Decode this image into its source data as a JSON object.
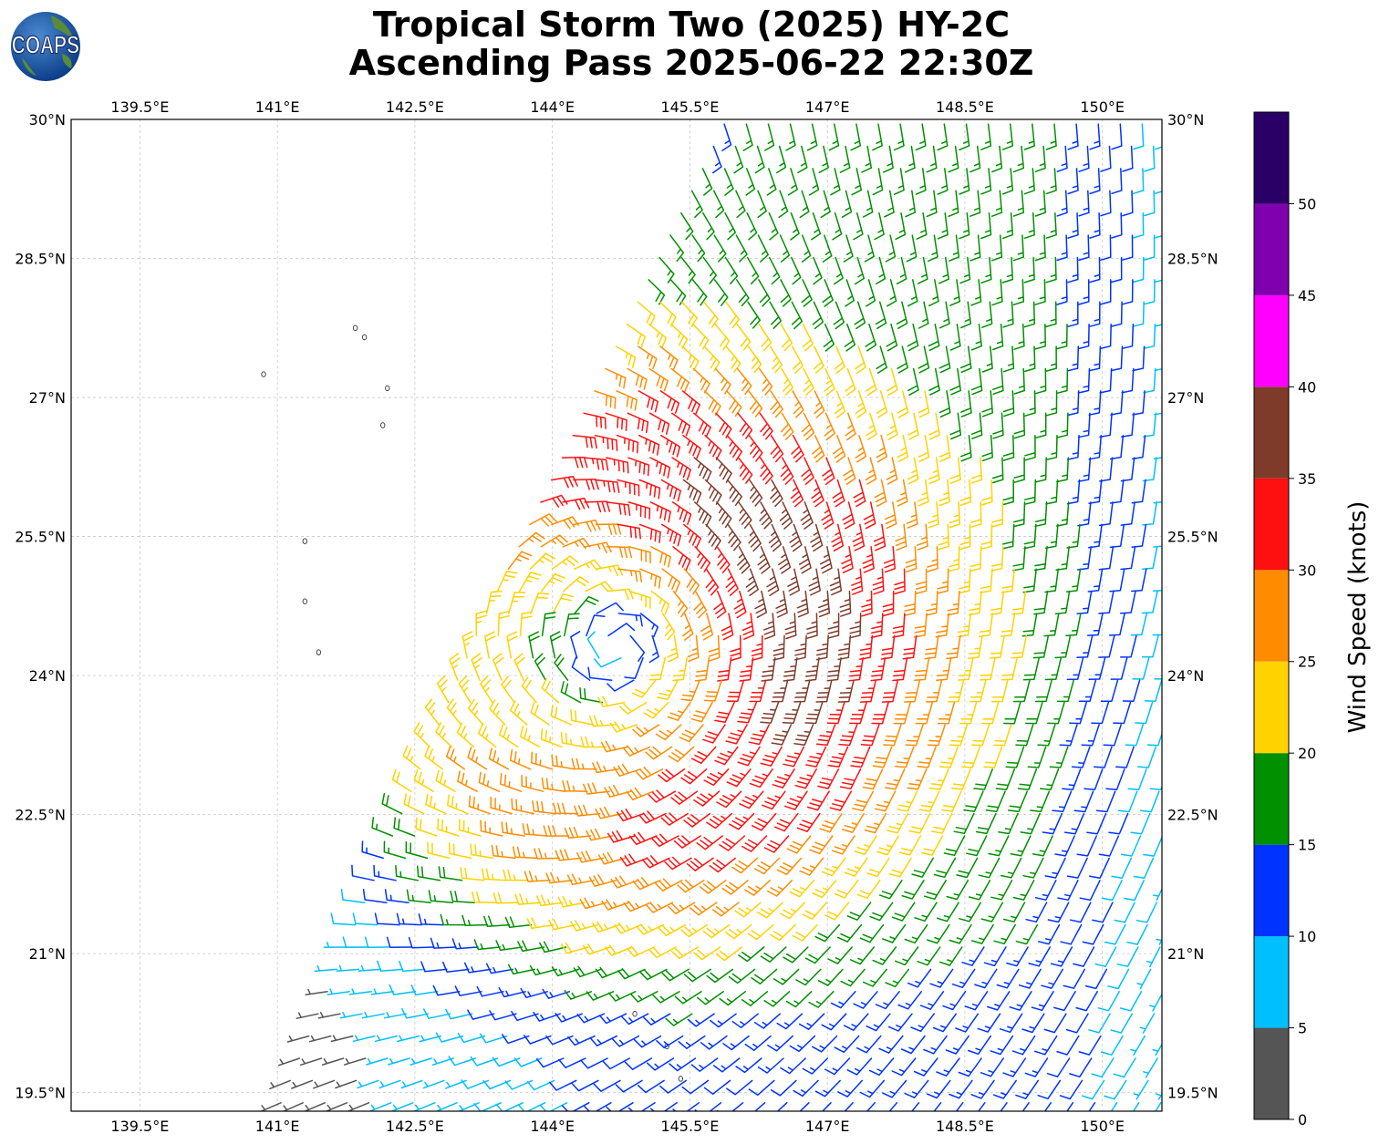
{
  "title": {
    "line1": "Tropical Storm Two (2025) HY-2C",
    "line2": "Ascending Pass 2025-06-22 22:30Z"
  },
  "logo": {
    "text": "COAPS",
    "icon": "coaps-globe-logo"
  },
  "map": {
    "lon_range": [
      138.75,
      150.65
    ],
    "lat_range": [
      19.3,
      30.0
    ],
    "gridlines": true,
    "lon_ticks": [
      139.5,
      141,
      142.5,
      144,
      145.5,
      147,
      148.5,
      150
    ],
    "lon_tick_labels": [
      "139.5°E",
      "141°E",
      "142.5°E",
      "144°E",
      "145.5°E",
      "147°E",
      "148.5°E",
      "150°E"
    ],
    "lat_ticks": [
      30,
      28.5,
      27,
      25.5,
      24,
      22.5,
      21,
      19.5
    ],
    "lat_tick_labels": [
      "30°N",
      "28.5°N",
      "27°N",
      "25.5°N",
      "24°N",
      "22.5°N",
      "21°N",
      "19.5°N"
    ],
    "storm_center": {
      "lon": 144.7,
      "lat": 24.3
    },
    "swath": {
      "top_left": {
        "lon": 145.9,
        "lat": 30.0
      },
      "mid_left": {
        "lon": 143.2,
        "lat": 24.5
      },
      "bottom_left": {
        "lon": 141.0,
        "lat": 19.3
      }
    },
    "islands": [
      {
        "lon": 141.85,
        "lat": 27.75
      },
      {
        "lon": 141.95,
        "lat": 27.65
      },
      {
        "lon": 140.85,
        "lat": 27.25
      },
      {
        "lon": 142.2,
        "lat": 27.1
      },
      {
        "lon": 142.15,
        "lat": 26.7
      },
      {
        "lon": 141.3,
        "lat": 25.45
      },
      {
        "lon": 141.3,
        "lat": 24.8
      },
      {
        "lon": 141.45,
        "lat": 24.25
      },
      {
        "lon": 144.9,
        "lat": 20.35
      },
      {
        "lon": 145.25,
        "lat": 20.0
      },
      {
        "lon": 145.4,
        "lat": 19.65
      }
    ]
  },
  "colorbar": {
    "label": "Wind Speed (knots)",
    "tick_labels": [
      "0",
      "5",
      "10",
      "15",
      "20",
      "25",
      "30",
      "35",
      "40",
      "45",
      "50"
    ],
    "bins": [
      {
        "min": 0,
        "max": 5,
        "color": "#555555"
      },
      {
        "min": 5,
        "max": 10,
        "color": "#00bfff"
      },
      {
        "min": 10,
        "max": 15,
        "color": "#0033ff"
      },
      {
        "min": 15,
        "max": 20,
        "color": "#009000"
      },
      {
        "min": 20,
        "max": 25,
        "color": "#ffd200"
      },
      {
        "min": 25,
        "max": 30,
        "color": "#ff8c00"
      },
      {
        "min": 30,
        "max": 35,
        "color": "#ff1010"
      },
      {
        "min": 35,
        "max": 40,
        "color": "#7f3b2a"
      },
      {
        "min": 40,
        "max": 45,
        "color": "#ff00ff"
      },
      {
        "min": 45,
        "max": 50,
        "color": "#8000b0"
      },
      {
        "min": 50,
        "max": 55,
        "color": "#2a0066"
      }
    ]
  }
}
